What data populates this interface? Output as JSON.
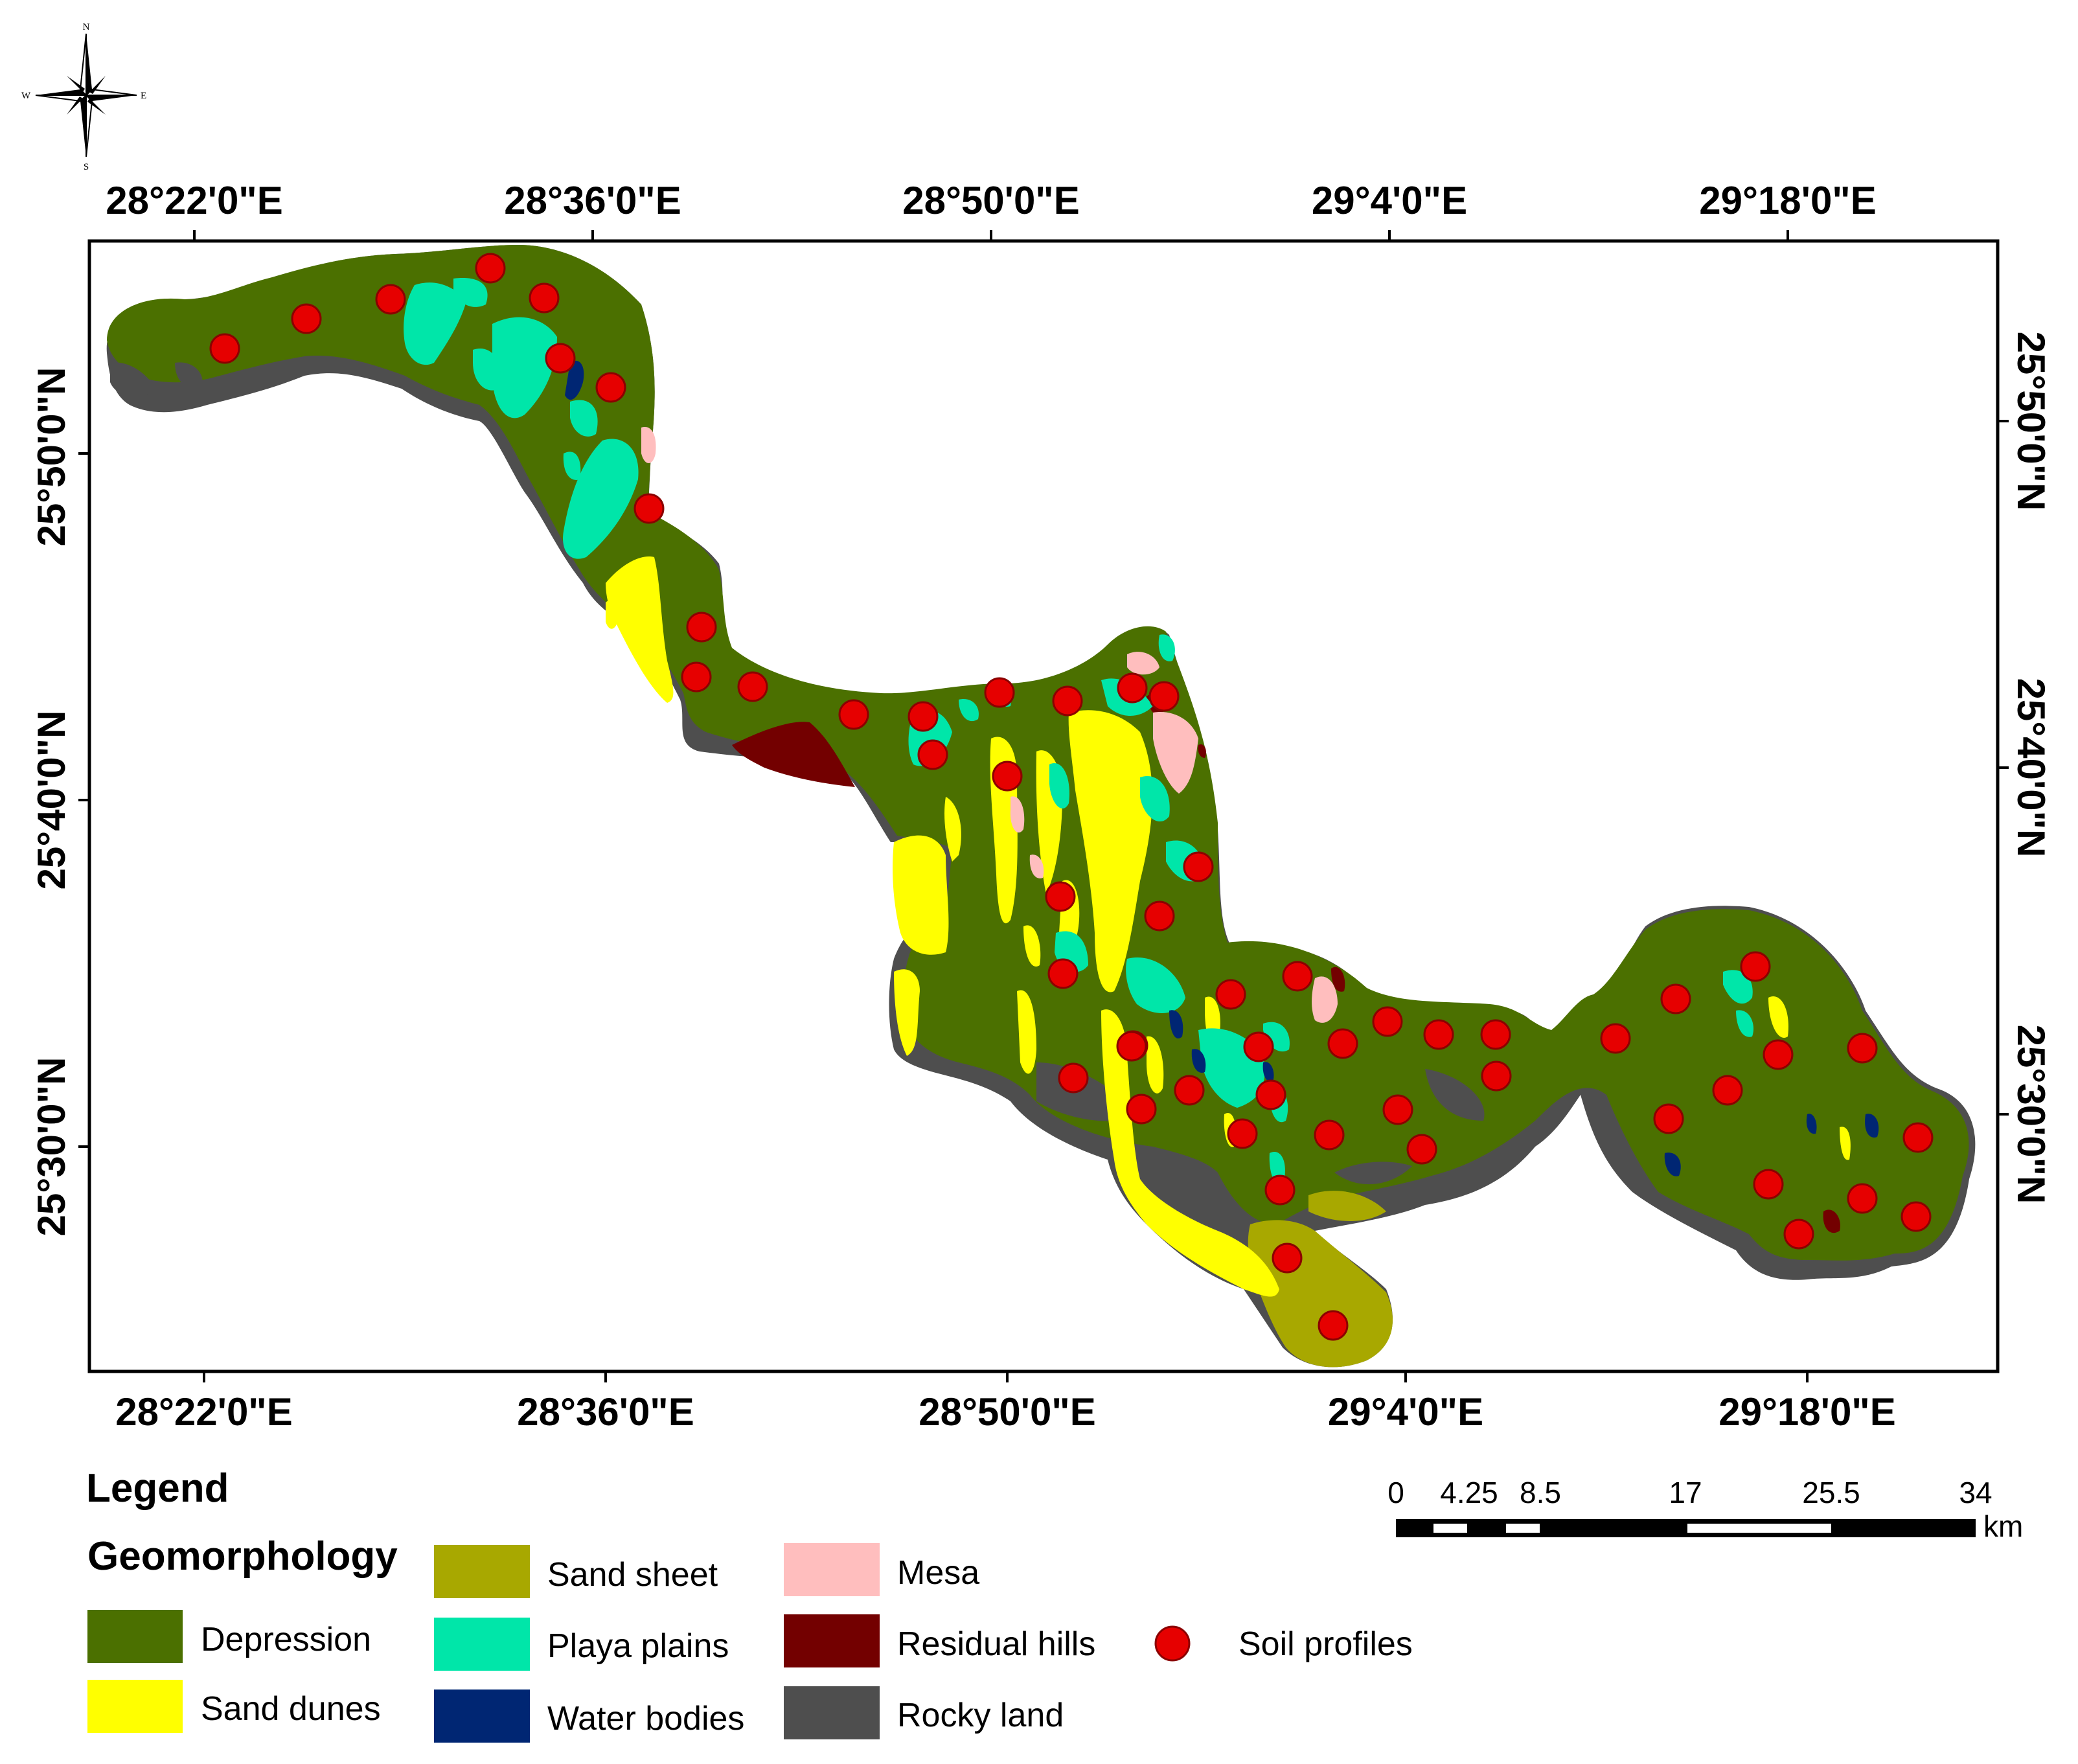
{
  "compass": {
    "n": "N",
    "s": "S",
    "e": "E",
    "w": "W"
  },
  "axes": {
    "top": [
      "28°22'0\"E",
      "28°36'0\"E",
      "28°50'0\"E",
      "29°4'0\"E",
      "29°18'0\"E"
    ],
    "bottom": [
      "28°22'0\"E",
      "28°36'0\"E",
      "28°50'0\"E",
      "29°4'0\"E",
      "29°18'0\"E"
    ],
    "left": [
      "25°50'0\"N",
      "25°40'0\"N",
      "25°30'0\"N"
    ],
    "right": [
      "25°50'0\"N",
      "25°40'0\"N",
      "25°30'0\"N"
    ]
  },
  "legend": {
    "title": "Legend",
    "subtitle": "Geomorphology",
    "classes": [
      {
        "label": "Depression",
        "color": "#4b7000"
      },
      {
        "label": "Sand dunes",
        "color": "#ffff00"
      },
      {
        "label": "Sand sheet",
        "color": "#a8a800"
      },
      {
        "label": "Playa plains",
        "color": "#00e6a9"
      },
      {
        "label": "Water bodies",
        "color": "#002673"
      },
      {
        "label": "Mesa",
        "color": "#ffbebe"
      },
      {
        "label": "Residual hills",
        "color": "#730000"
      },
      {
        "label": "Rocky land",
        "color": "#4e4e4e"
      }
    ],
    "points": {
      "label": "Soil profiles",
      "color": "#e60000"
    }
  },
  "scalebar": {
    "ticks": [
      "0",
      "4.25",
      "8.5",
      "17",
      "25.5",
      "34"
    ],
    "unit": "km"
  }
}
